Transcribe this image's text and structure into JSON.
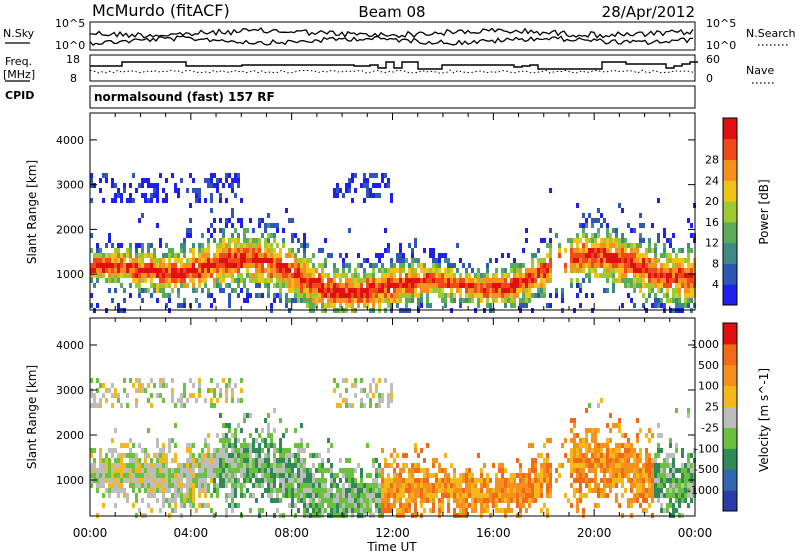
{
  "header": {
    "station": "McMurdo (fitACF)",
    "beam": "Beam 08",
    "date": "28/Apr/2012"
  },
  "strip_labels": {
    "nsky": "N.Sky",
    "nsearch": "N.Search",
    "freq": "Freq.",
    "freq_unit": "[MHz]",
    "nave": "Nave",
    "cpid": "CPID"
  },
  "noise_axis": {
    "top": "10^5",
    "bottom": "10^0"
  },
  "freq_axis": {
    "ticks": [
      "18",
      "8"
    ]
  },
  "nave_axis": {
    "ticks": [
      "60",
      "0"
    ]
  },
  "cpid_value": "normalsound (fast) 157 RF",
  "ylabel": "Slant Range [km]",
  "xlabel": "Time UT",
  "chart_data": [
    {
      "type": "heatmap",
      "panel": "power",
      "ylabel": "Slant Range [km]",
      "xlabel": "Time UT",
      "x_ticks": [
        "00:00",
        "04:00",
        "08:00",
        "12:00",
        "16:00",
        "20:00",
        "00:00"
      ],
      "y_ticks": [
        1000,
        2000,
        3000,
        4000
      ],
      "ylim": [
        200,
        4600
      ],
      "colorbar_label": "Power [dB]",
      "colorbar_ticks": [
        "4",
        "8",
        "12",
        "16",
        "20",
        "24",
        "28"
      ],
      "colorbar_colors": [
        "#1f1ff0",
        "#2e57b8",
        "#3f8a88",
        "#5bab58",
        "#9cca33",
        "#f0c21a",
        "#f7901e",
        "#ee4a1a",
        "#e11111"
      ]
    },
    {
      "type": "heatmap",
      "panel": "velocity",
      "ylabel": "Slant Range [km]",
      "xlabel": "Time UT",
      "x_ticks": [
        "00:00",
        "04:00",
        "08:00",
        "12:00",
        "16:00",
        "20:00",
        "00:00"
      ],
      "y_ticks": [
        1000,
        2000,
        3000,
        4000
      ],
      "ylim": [
        200,
        4600
      ],
      "colorbar_label": "Velocity [m s^-1]",
      "colorbar_ticks": [
        "1000",
        "500",
        "100",
        "25",
        "-25",
        "-100",
        "-500",
        "-1000"
      ],
      "colorbar_colors": [
        "#2a3aa8",
        "#3166b0",
        "#2f8a58",
        "#6cc040",
        "#bdbdbd",
        "#f5b81a",
        "#f5901a",
        "#f06a1a",
        "#e11111"
      ]
    }
  ]
}
